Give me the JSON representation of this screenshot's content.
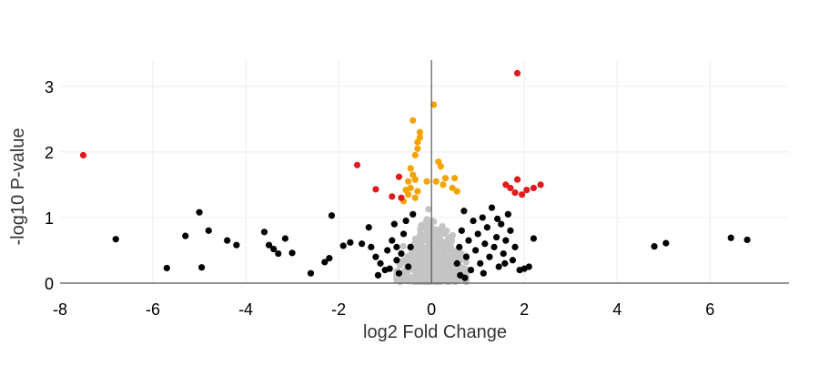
{
  "chart_data": {
    "type": "scatter",
    "title": "",
    "xlabel": "log2 Fold Change",
    "ylabel": "-log10 P-value",
    "xlim": [
      -8,
      7.7
    ],
    "ylim": [
      0,
      3.4
    ],
    "grid": true,
    "xticks": [
      -8,
      -6,
      -4,
      -2,
      0,
      2,
      4,
      6
    ],
    "yticks": [
      0,
      1,
      2,
      3
    ],
    "colors": {
      "not_significant": "#c4c4c4",
      "black_points": "#000000",
      "orange_points": "#f5a300",
      "red_points": "#e31a1c"
    },
    "series": [
      {
        "color_key": "red_points",
        "points": [
          [
            -7.5,
            1.95
          ],
          [
            -1.6,
            1.8
          ],
          [
            -1.2,
            1.43
          ],
          [
            -0.7,
            1.62
          ],
          [
            -0.85,
            1.32
          ],
          [
            -0.65,
            1.3
          ],
          [
            1.85,
            1.58
          ],
          [
            1.6,
            1.5
          ],
          [
            1.7,
            1.45
          ],
          [
            1.8,
            1.38
          ],
          [
            1.95,
            1.35
          ],
          [
            2.05,
            1.42
          ],
          [
            2.2,
            1.45
          ],
          [
            2.35,
            1.5
          ],
          [
            1.85,
            3.2
          ]
        ]
      },
      {
        "color_key": "orange_points",
        "points": [
          [
            -0.4,
            2.48
          ],
          [
            -0.25,
            2.3
          ],
          [
            -0.25,
            2.22
          ],
          [
            -0.3,
            2.15
          ],
          [
            -0.3,
            2.05
          ],
          [
            -0.35,
            1.95
          ],
          [
            -0.45,
            1.75
          ],
          [
            -0.4,
            1.65
          ],
          [
            -0.35,
            1.58
          ],
          [
            -0.5,
            1.55
          ],
          [
            -0.45,
            1.45
          ],
          [
            -0.55,
            1.42
          ],
          [
            -0.3,
            1.4
          ],
          [
            -0.5,
            1.35
          ],
          [
            -0.35,
            1.3
          ],
          [
            -0.6,
            1.25
          ],
          [
            0.05,
            2.72
          ],
          [
            0.15,
            1.85
          ],
          [
            0.2,
            1.78
          ],
          [
            0.3,
            1.6
          ],
          [
            0.1,
            1.55
          ],
          [
            0.25,
            1.5
          ],
          [
            0.45,
            1.45
          ],
          [
            0.55,
            1.4
          ],
          [
            0.5,
            1.6
          ],
          [
            -0.1,
            1.55
          ]
        ]
      },
      {
        "color_key": "black_points",
        "points": [
          [
            -6.8,
            0.67
          ],
          [
            -5.7,
            0.23
          ],
          [
            -5.3,
            0.72
          ],
          [
            -5.0,
            1.08
          ],
          [
            -4.95,
            0.24
          ],
          [
            -4.8,
            0.8
          ],
          [
            -4.4,
            0.65
          ],
          [
            -4.2,
            0.58
          ],
          [
            -3.6,
            0.78
          ],
          [
            -3.5,
            0.58
          ],
          [
            -3.4,
            0.52
          ],
          [
            -3.3,
            0.45
          ],
          [
            -3.15,
            0.68
          ],
          [
            -3.0,
            0.46
          ],
          [
            -2.6,
            0.15
          ],
          [
            -2.3,
            0.32
          ],
          [
            -2.2,
            0.38
          ],
          [
            -2.15,
            1.03
          ],
          [
            -1.9,
            0.57
          ],
          [
            -1.75,
            0.62
          ],
          [
            -1.5,
            0.6
          ],
          [
            -1.35,
            0.85
          ],
          [
            -1.3,
            0.55
          ],
          [
            -1.2,
            0.4
          ],
          [
            -1.1,
            0.3
          ],
          [
            -1.0,
            0.2
          ],
          [
            -0.95,
            0.5
          ],
          [
            -0.85,
            0.65
          ],
          [
            -0.8,
            0.9
          ],
          [
            -0.75,
            0.35
          ],
          [
            -0.7,
            0.15
          ],
          [
            -0.65,
            0.45
          ],
          [
            -0.6,
            0.75
          ],
          [
            -0.55,
            0.95
          ],
          [
            -0.5,
            0.25
          ],
          [
            -0.45,
            0.55
          ],
          [
            -0.4,
            1.05
          ],
          [
            -1.15,
            0.12
          ],
          [
            -0.9,
            0.22
          ],
          [
            -0.75,
            0.55
          ],
          [
            0.55,
            0.3
          ],
          [
            0.6,
            0.55
          ],
          [
            0.65,
            0.8
          ],
          [
            0.7,
            1.1
          ],
          [
            0.75,
            0.4
          ],
          [
            0.8,
            0.65
          ],
          [
            0.85,
            0.2
          ],
          [
            0.9,
            0.95
          ],
          [
            0.95,
            0.5
          ],
          [
            1.0,
            0.75
          ],
          [
            1.05,
            0.3
          ],
          [
            1.1,
            1.0
          ],
          [
            1.15,
            0.6
          ],
          [
            1.2,
            0.85
          ],
          [
            1.25,
            0.4
          ],
          [
            1.3,
            1.15
          ],
          [
            1.35,
            0.55
          ],
          [
            1.4,
            0.7
          ],
          [
            1.45,
            0.25
          ],
          [
            1.5,
            0.9
          ],
          [
            1.55,
            0.45
          ],
          [
            1.6,
            0.65
          ],
          [
            1.65,
            1.05
          ],
          [
            1.7,
            0.8
          ],
          [
            1.75,
            0.35
          ],
          [
            1.8,
            0.55
          ],
          [
            1.9,
            0.2
          ],
          [
            2.0,
            0.22
          ],
          [
            2.1,
            0.25
          ],
          [
            2.2,
            0.68
          ],
          [
            0.62,
            0.12
          ],
          [
            0.72,
            0.08
          ],
          [
            1.12,
            0.15
          ],
          [
            1.42,
            0.98
          ],
          [
            1.58,
            0.3
          ],
          [
            4.8,
            0.56
          ],
          [
            5.05,
            0.61
          ],
          [
            6.45,
            0.69
          ],
          [
            6.8,
            0.66
          ]
        ]
      },
      {
        "color_key": "not_significant",
        "generated": true
      }
    ]
  }
}
